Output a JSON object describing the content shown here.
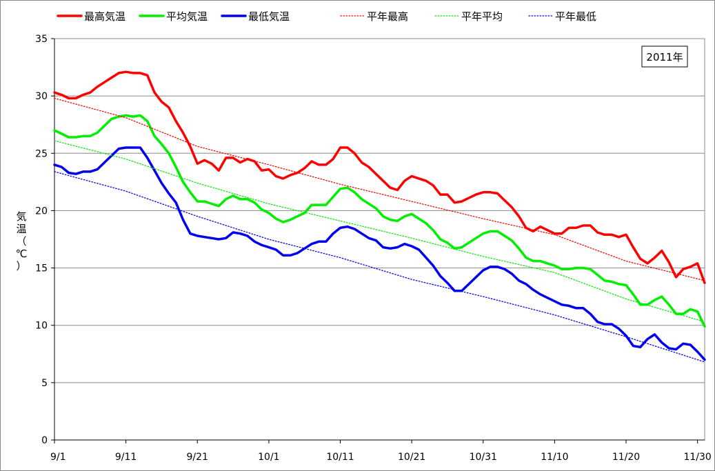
{
  "chart_data": {
    "type": "line",
    "title": "",
    "xlabel": "",
    "ylabel": "気温（℃）",
    "ylim": [
      0,
      35
    ],
    "y_ticks": [
      0,
      5,
      10,
      15,
      20,
      25,
      30,
      35
    ],
    "x_range": [
      "9/1",
      "11/30"
    ],
    "x_ticks": [
      "9/1",
      "9/11",
      "9/21",
      "10/1",
      "10/11",
      "10/21",
      "10/31",
      "11/10",
      "11/20",
      "11/30"
    ],
    "grid": "horizontal",
    "legend_position": "top",
    "annotation": "2011年",
    "series": [
      {
        "name": "最高気温",
        "color": "#ff0000",
        "style": "solid",
        "points": [
          [
            0,
            30.3
          ],
          [
            1,
            30.1
          ],
          [
            2,
            29.8
          ],
          [
            3,
            29.8
          ],
          [
            4,
            30.1
          ],
          [
            5,
            30.3
          ],
          [
            6,
            30.8
          ],
          [
            7,
            31.2
          ],
          [
            8,
            31.6
          ],
          [
            9,
            32.0
          ],
          [
            10,
            32.1
          ],
          [
            11,
            32.0
          ],
          [
            12,
            32.0
          ],
          [
            13,
            31.8
          ],
          [
            14,
            30.3
          ],
          [
            15,
            29.5
          ],
          [
            16,
            29.0
          ],
          [
            17,
            27.8
          ],
          [
            18,
            26.8
          ],
          [
            19,
            25.6
          ],
          [
            20,
            24.1
          ],
          [
            21,
            24.4
          ],
          [
            22,
            24.1
          ],
          [
            23,
            23.5
          ],
          [
            24,
            24.6
          ],
          [
            25,
            24.6
          ],
          [
            26,
            24.2
          ],
          [
            27,
            24.5
          ],
          [
            28,
            24.3
          ],
          [
            29,
            23.5
          ],
          [
            30,
            23.6
          ],
          [
            31,
            23.0
          ],
          [
            32,
            22.8
          ],
          [
            33,
            23.1
          ],
          [
            34,
            23.3
          ],
          [
            35,
            23.7
          ],
          [
            36,
            24.3
          ],
          [
            37,
            24.0
          ],
          [
            38,
            24.0
          ],
          [
            39,
            24.5
          ],
          [
            40,
            25.5
          ],
          [
            41,
            25.5
          ],
          [
            42,
            25.0
          ],
          [
            43,
            24.2
          ],
          [
            44,
            23.8
          ],
          [
            45,
            23.2
          ],
          [
            46,
            22.6
          ],
          [
            47,
            22.0
          ],
          [
            48,
            21.8
          ],
          [
            49,
            22.6
          ],
          [
            50,
            23.0
          ],
          [
            51,
            22.8
          ],
          [
            52,
            22.6
          ],
          [
            53,
            22.2
          ],
          [
            54,
            21.4
          ],
          [
            55,
            21.4
          ],
          [
            56,
            20.7
          ],
          [
            57,
            20.8
          ],
          [
            58,
            21.1
          ],
          [
            59,
            21.4
          ],
          [
            60,
            21.6
          ],
          [
            61,
            21.6
          ],
          [
            62,
            21.5
          ],
          [
            63,
            20.9
          ],
          [
            64,
            20.3
          ],
          [
            65,
            19.5
          ],
          [
            66,
            18.5
          ],
          [
            67,
            18.2
          ],
          [
            68,
            18.6
          ],
          [
            69,
            18.3
          ],
          [
            70,
            18.0
          ],
          [
            71,
            18.0
          ],
          [
            72,
            18.5
          ],
          [
            73,
            18.5
          ],
          [
            74,
            18.7
          ],
          [
            75,
            18.7
          ],
          [
            76,
            18.1
          ],
          [
            77,
            17.9
          ],
          [
            78,
            17.9
          ],
          [
            79,
            17.7
          ],
          [
            80,
            17.9
          ],
          [
            81,
            16.8
          ],
          [
            82,
            15.8
          ],
          [
            83,
            15.4
          ],
          [
            84,
            15.9
          ],
          [
            85,
            16.5
          ],
          [
            86,
            15.5
          ],
          [
            87,
            14.2
          ],
          [
            88,
            14.9
          ],
          [
            89,
            15.1
          ],
          [
            90,
            15.4
          ],
          [
            91,
            13.7
          ]
        ]
      },
      {
        "name": "平均気温",
        "color": "#00ee00",
        "style": "solid",
        "points": [
          [
            0,
            27.0
          ],
          [
            1,
            26.7
          ],
          [
            2,
            26.4
          ],
          [
            3,
            26.4
          ],
          [
            4,
            26.5
          ],
          [
            5,
            26.5
          ],
          [
            6,
            26.8
          ],
          [
            7,
            27.4
          ],
          [
            8,
            28.0
          ],
          [
            9,
            28.2
          ],
          [
            10,
            28.3
          ],
          [
            11,
            28.2
          ],
          [
            12,
            28.3
          ],
          [
            13,
            27.8
          ],
          [
            14,
            26.5
          ],
          [
            15,
            25.8
          ],
          [
            16,
            25.0
          ],
          [
            17,
            23.8
          ],
          [
            18,
            22.5
          ],
          [
            19,
            21.6
          ],
          [
            20,
            20.8
          ],
          [
            21,
            20.8
          ],
          [
            22,
            20.6
          ],
          [
            23,
            20.4
          ],
          [
            24,
            21.0
          ],
          [
            25,
            21.3
          ],
          [
            26,
            21.0
          ],
          [
            27,
            21.0
          ],
          [
            28,
            20.7
          ],
          [
            29,
            20.1
          ],
          [
            30,
            19.8
          ],
          [
            31,
            19.3
          ],
          [
            32,
            19.0
          ],
          [
            33,
            19.2
          ],
          [
            34,
            19.5
          ],
          [
            35,
            19.8
          ],
          [
            36,
            20.5
          ],
          [
            37,
            20.5
          ],
          [
            38,
            20.5
          ],
          [
            39,
            21.2
          ],
          [
            40,
            21.9
          ],
          [
            41,
            22.0
          ],
          [
            42,
            21.6
          ],
          [
            43,
            21.0
          ],
          [
            44,
            20.6
          ],
          [
            45,
            20.2
          ],
          [
            46,
            19.5
          ],
          [
            47,
            19.2
          ],
          [
            48,
            19.1
          ],
          [
            49,
            19.5
          ],
          [
            50,
            19.7
          ],
          [
            51,
            19.3
          ],
          [
            52,
            18.9
          ],
          [
            53,
            18.3
          ],
          [
            54,
            17.5
          ],
          [
            55,
            17.2
          ],
          [
            56,
            16.7
          ],
          [
            57,
            16.8
          ],
          [
            58,
            17.2
          ],
          [
            59,
            17.6
          ],
          [
            60,
            18.0
          ],
          [
            61,
            18.2
          ],
          [
            62,
            18.2
          ],
          [
            63,
            17.8
          ],
          [
            64,
            17.4
          ],
          [
            65,
            16.7
          ],
          [
            66,
            15.9
          ],
          [
            67,
            15.6
          ],
          [
            68,
            15.6
          ],
          [
            69,
            15.4
          ],
          [
            70,
            15.2
          ],
          [
            71,
            14.9
          ],
          [
            72,
            14.9
          ],
          [
            73,
            15.0
          ],
          [
            74,
            15.0
          ],
          [
            75,
            14.9
          ],
          [
            76,
            14.4
          ],
          [
            77,
            13.9
          ],
          [
            78,
            13.8
          ],
          [
            79,
            13.6
          ],
          [
            80,
            13.5
          ],
          [
            81,
            12.7
          ],
          [
            82,
            11.8
          ],
          [
            83,
            11.8
          ],
          [
            84,
            12.2
          ],
          [
            85,
            12.5
          ],
          [
            86,
            11.8
          ],
          [
            87,
            11.0
          ],
          [
            88,
            11.0
          ],
          [
            89,
            11.4
          ],
          [
            90,
            11.2
          ],
          [
            91,
            9.9
          ]
        ]
      },
      {
        "name": "最低気温",
        "color": "#0000ee",
        "style": "solid",
        "points": [
          [
            0,
            24.0
          ],
          [
            1,
            23.8
          ],
          [
            2,
            23.3
          ],
          [
            3,
            23.2
          ],
          [
            4,
            23.4
          ],
          [
            5,
            23.4
          ],
          [
            6,
            23.6
          ],
          [
            7,
            24.2
          ],
          [
            8,
            24.8
          ],
          [
            9,
            25.4
          ],
          [
            10,
            25.5
          ],
          [
            11,
            25.5
          ],
          [
            12,
            25.5
          ],
          [
            13,
            24.6
          ],
          [
            14,
            23.5
          ],
          [
            15,
            22.4
          ],
          [
            16,
            21.5
          ],
          [
            17,
            20.7
          ],
          [
            18,
            19.2
          ],
          [
            19,
            18.0
          ],
          [
            20,
            17.8
          ],
          [
            21,
            17.7
          ],
          [
            22,
            17.6
          ],
          [
            23,
            17.5
          ],
          [
            24,
            17.6
          ],
          [
            25,
            18.1
          ],
          [
            26,
            18.0
          ],
          [
            27,
            17.8
          ],
          [
            28,
            17.3
          ],
          [
            29,
            17.0
          ],
          [
            30,
            16.8
          ],
          [
            31,
            16.6
          ],
          [
            32,
            16.1
          ],
          [
            33,
            16.1
          ],
          [
            34,
            16.3
          ],
          [
            35,
            16.7
          ],
          [
            36,
            17.1
          ],
          [
            37,
            17.3
          ],
          [
            38,
            17.3
          ],
          [
            39,
            18.0
          ],
          [
            40,
            18.5
          ],
          [
            41,
            18.6
          ],
          [
            42,
            18.4
          ],
          [
            43,
            18.0
          ],
          [
            44,
            17.6
          ],
          [
            45,
            17.4
          ],
          [
            46,
            16.8
          ],
          [
            47,
            16.7
          ],
          [
            48,
            16.8
          ],
          [
            49,
            17.1
          ],
          [
            50,
            16.9
          ],
          [
            51,
            16.6
          ],
          [
            52,
            15.9
          ],
          [
            53,
            15.2
          ],
          [
            54,
            14.3
          ],
          [
            55,
            13.7
          ],
          [
            56,
            13.0
          ],
          [
            57,
            13.0
          ],
          [
            58,
            13.6
          ],
          [
            59,
            14.2
          ],
          [
            60,
            14.8
          ],
          [
            61,
            15.1
          ],
          [
            62,
            15.1
          ],
          [
            63,
            14.9
          ],
          [
            64,
            14.5
          ],
          [
            65,
            13.9
          ],
          [
            66,
            13.6
          ],
          [
            67,
            13.1
          ],
          [
            68,
            12.7
          ],
          [
            69,
            12.4
          ],
          [
            70,
            12.1
          ],
          [
            71,
            11.8
          ],
          [
            72,
            11.7
          ],
          [
            73,
            11.5
          ],
          [
            74,
            11.5
          ],
          [
            75,
            11.0
          ],
          [
            76,
            10.3
          ],
          [
            77,
            10.1
          ],
          [
            78,
            10.1
          ],
          [
            79,
            9.7
          ],
          [
            80,
            9.1
          ],
          [
            81,
            8.2
          ],
          [
            82,
            8.1
          ],
          [
            83,
            8.8
          ],
          [
            84,
            9.2
          ],
          [
            85,
            8.5
          ],
          [
            86,
            8.0
          ],
          [
            87,
            7.9
          ],
          [
            88,
            8.4
          ],
          [
            89,
            8.3
          ],
          [
            90,
            7.7
          ],
          [
            91,
            7.0
          ]
        ]
      },
      {
        "name": "平年最高",
        "color": "#ff0000",
        "style": "dotted",
        "points": [
          [
            0,
            29.8
          ],
          [
            10,
            28.1
          ],
          [
            20,
            25.6
          ],
          [
            30,
            24.0
          ],
          [
            40,
            22.3
          ],
          [
            50,
            20.8
          ],
          [
            60,
            19.3
          ],
          [
            70,
            17.9
          ],
          [
            80,
            15.6
          ],
          [
            91,
            13.9
          ]
        ]
      },
      {
        "name": "平年平均",
        "color": "#00ee00",
        "style": "dotted",
        "points": [
          [
            0,
            26.1
          ],
          [
            10,
            24.5
          ],
          [
            20,
            22.4
          ],
          [
            30,
            20.6
          ],
          [
            40,
            19.1
          ],
          [
            50,
            17.6
          ],
          [
            60,
            16.0
          ],
          [
            70,
            14.6
          ],
          [
            80,
            12.3
          ],
          [
            91,
            10.3
          ]
        ]
      },
      {
        "name": "平年最低",
        "color": "#0000ee",
        "style": "dotted",
        "points": [
          [
            0,
            23.4
          ],
          [
            10,
            21.7
          ],
          [
            20,
            19.5
          ],
          [
            30,
            17.5
          ],
          [
            40,
            15.9
          ],
          [
            50,
            14.0
          ],
          [
            60,
            12.5
          ],
          [
            70,
            10.9
          ],
          [
            80,
            9.0
          ],
          [
            91,
            6.8
          ]
        ]
      }
    ]
  }
}
